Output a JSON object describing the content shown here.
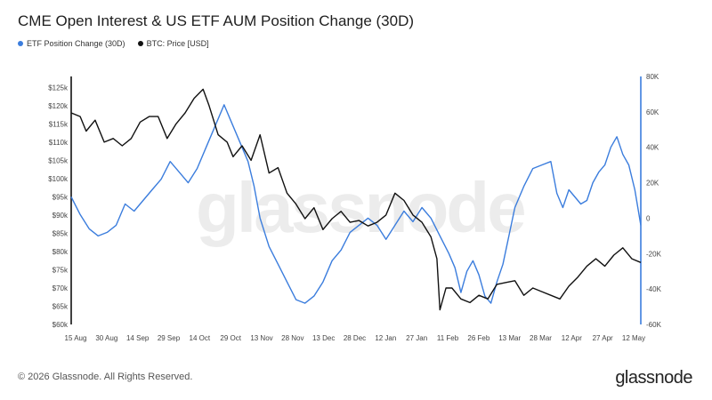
{
  "title": "CME Open Interest & US ETF AUM Position Change (30D)",
  "footer": "© 2026 Glassnode. All Rights Reserved.",
  "logo": "glassnode",
  "watermark": "glassnode",
  "colors": {
    "etf": "#3b7ddd",
    "btc": "#111111"
  },
  "chart_data": {
    "type": "line",
    "x_ticks": [
      "15 Aug",
      "30 Aug",
      "14 Sep",
      "29 Sep",
      "14 Oct",
      "29 Oct",
      "13 Nov",
      "28 Nov",
      "13 Dec",
      "28 Dec",
      "12 Jan",
      "27 Jan",
      "11 Feb",
      "26 Feb",
      "13 Mar",
      "28 Mar",
      "12 Apr",
      "27 Apr",
      "12 May"
    ],
    "y_left": {
      "ticks": [
        "$60k",
        "$65k",
        "$70k",
        "$75k",
        "$80k",
        "$85k",
        "$90k",
        "$95k",
        "$100k",
        "$105k",
        "$110k",
        "$115k",
        "$120k",
        "$125k"
      ],
      "range": [
        60000,
        128000
      ]
    },
    "y_right": {
      "ticks": [
        "-60K",
        "-40K",
        "-20K",
        "0",
        "20K",
        "40K",
        "60K",
        "80K"
      ],
      "range": [
        -60000,
        80000
      ]
    },
    "series": [
      {
        "name": "ETF Position Change (30D)",
        "axis": "right",
        "color": "#3b7ddd",
        "points": [
          [
            0,
            12000
          ],
          [
            3,
            2000
          ],
          [
            6,
            -6000
          ],
          [
            9,
            -10000
          ],
          [
            12,
            -8000
          ],
          [
            15,
            -4000
          ],
          [
            18,
            8000
          ],
          [
            21,
            4000
          ],
          [
            24,
            10000
          ],
          [
            27,
            16000
          ],
          [
            30,
            22000
          ],
          [
            33,
            32000
          ],
          [
            36,
            26000
          ],
          [
            39,
            20000
          ],
          [
            42,
            28000
          ],
          [
            45,
            40000
          ],
          [
            48,
            52000
          ],
          [
            51,
            64000
          ],
          [
            53,
            56000
          ],
          [
            56,
            44000
          ],
          [
            59,
            32000
          ],
          [
            61,
            18000
          ],
          [
            63,
            0
          ],
          [
            66,
            -16000
          ],
          [
            69,
            -26000
          ],
          [
            72,
            -36000
          ],
          [
            75,
            -46000
          ],
          [
            78,
            -48000
          ],
          [
            81,
            -44000
          ],
          [
            84,
            -36000
          ],
          [
            87,
            -24000
          ],
          [
            90,
            -18000
          ],
          [
            93,
            -8000
          ],
          [
            96,
            -4000
          ],
          [
            99,
            0
          ],
          [
            102,
            -4000
          ],
          [
            105,
            -12000
          ],
          [
            108,
            -4000
          ],
          [
            111,
            4000
          ],
          [
            114,
            -2000
          ],
          [
            117,
            6000
          ],
          [
            120,
            0
          ],
          [
            123,
            -10000
          ],
          [
            126,
            -20000
          ],
          [
            128,
            -28000
          ],
          [
            130,
            -42000
          ],
          [
            132,
            -30000
          ],
          [
            134,
            -24000
          ],
          [
            136,
            -32000
          ],
          [
            138,
            -44000
          ],
          [
            140,
            -48000
          ],
          [
            142,
            -36000
          ],
          [
            144,
            -26000
          ],
          [
            146,
            -10000
          ],
          [
            148,
            6000
          ],
          [
            151,
            18000
          ],
          [
            154,
            28000
          ],
          [
            157,
            30000
          ],
          [
            160,
            32000
          ],
          [
            162,
            14000
          ],
          [
            164,
            6000
          ],
          [
            166,
            16000
          ],
          [
            168,
            12000
          ],
          [
            170,
            8000
          ],
          [
            172,
            10000
          ],
          [
            174,
            20000
          ],
          [
            176,
            26000
          ],
          [
            178,
            30000
          ],
          [
            180,
            40000
          ],
          [
            182,
            46000
          ],
          [
            184,
            36000
          ],
          [
            186,
            30000
          ],
          [
            188,
            16000
          ],
          [
            190,
            -4000
          ]
        ]
      },
      {
        "name": "BTC: Price [USD]",
        "axis": "left",
        "color": "#111111",
        "points": [
          [
            0,
            118000
          ],
          [
            3,
            117000
          ],
          [
            5,
            113000
          ],
          [
            8,
            116000
          ],
          [
            11,
            110000
          ],
          [
            14,
            111000
          ],
          [
            17,
            109000
          ],
          [
            20,
            111000
          ],
          [
            23,
            115500
          ],
          [
            26,
            117000
          ],
          [
            29,
            117000
          ],
          [
            32,
            111000
          ],
          [
            35,
            115000
          ],
          [
            38,
            118000
          ],
          [
            41,
            122000
          ],
          [
            44,
            124500
          ],
          [
            46,
            120000
          ],
          [
            49,
            112000
          ],
          [
            52,
            110000
          ],
          [
            54,
            106000
          ],
          [
            57,
            109000
          ],
          [
            60,
            105000
          ],
          [
            63,
            112000
          ],
          [
            66,
            101500
          ],
          [
            69,
            103000
          ],
          [
            72,
            96000
          ],
          [
            75,
            93000
          ],
          [
            78,
            89000
          ],
          [
            81,
            92000
          ],
          [
            84,
            86000
          ],
          [
            87,
            89000
          ],
          [
            90,
            91000
          ],
          [
            93,
            88000
          ],
          [
            96,
            88500
          ],
          [
            99,
            87000
          ],
          [
            102,
            88000
          ],
          [
            105,
            90000
          ],
          [
            108,
            96000
          ],
          [
            111,
            94000
          ],
          [
            114,
            90000
          ],
          [
            117,
            88000
          ],
          [
            120,
            84000
          ],
          [
            122,
            78000
          ],
          [
            123,
            64000
          ],
          [
            125,
            70000
          ],
          [
            127,
            70000
          ],
          [
            130,
            67000
          ],
          [
            133,
            66000
          ],
          [
            136,
            68000
          ],
          [
            139,
            67000
          ],
          [
            142,
            71000
          ],
          [
            145,
            71500
          ],
          [
            148,
            72000
          ],
          [
            151,
            68000
          ],
          [
            154,
            70000
          ],
          [
            157,
            69000
          ],
          [
            160,
            68000
          ],
          [
            163,
            67000
          ],
          [
            166,
            70500
          ],
          [
            169,
            73000
          ],
          [
            172,
            76000
          ],
          [
            175,
            78000
          ],
          [
            178,
            76000
          ],
          [
            181,
            79000
          ],
          [
            184,
            81000
          ],
          [
            187,
            78000
          ],
          [
            190,
            77000
          ]
        ]
      }
    ],
    "legend_position": "top-left",
    "grid": false
  }
}
